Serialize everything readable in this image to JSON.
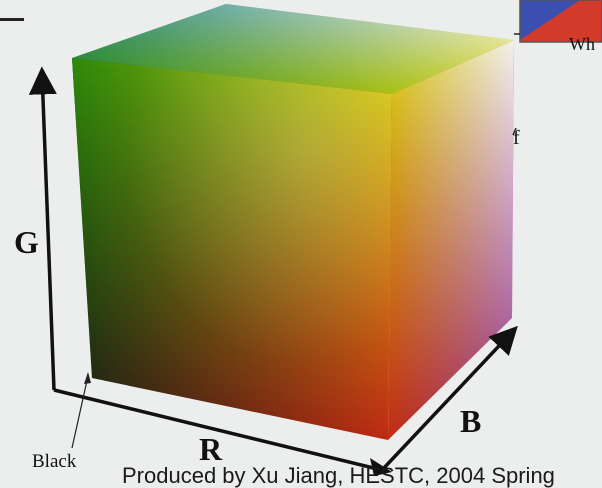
{
  "axes": {
    "g": "G",
    "r": "R",
    "b": "B"
  },
  "corners": {
    "black": "Black",
    "white": "Wh"
  },
  "footer": "Produced by Xu Jiang, HESTC, 2004 Spring",
  "stray_glyph": "f",
  "colors": {
    "background": "#eceeee",
    "axis": "#111111",
    "black_corner": "#141414",
    "red_corner": "#c22a12",
    "green_corner": "#2c8a0a",
    "blue_corner": "#2a1f8a",
    "yellow_corner": "#d8d411",
    "magenta_corner": "#8e2a8a",
    "cyan_corner": "#2a8a8a",
    "white_corner": "#f4f3f0"
  }
}
